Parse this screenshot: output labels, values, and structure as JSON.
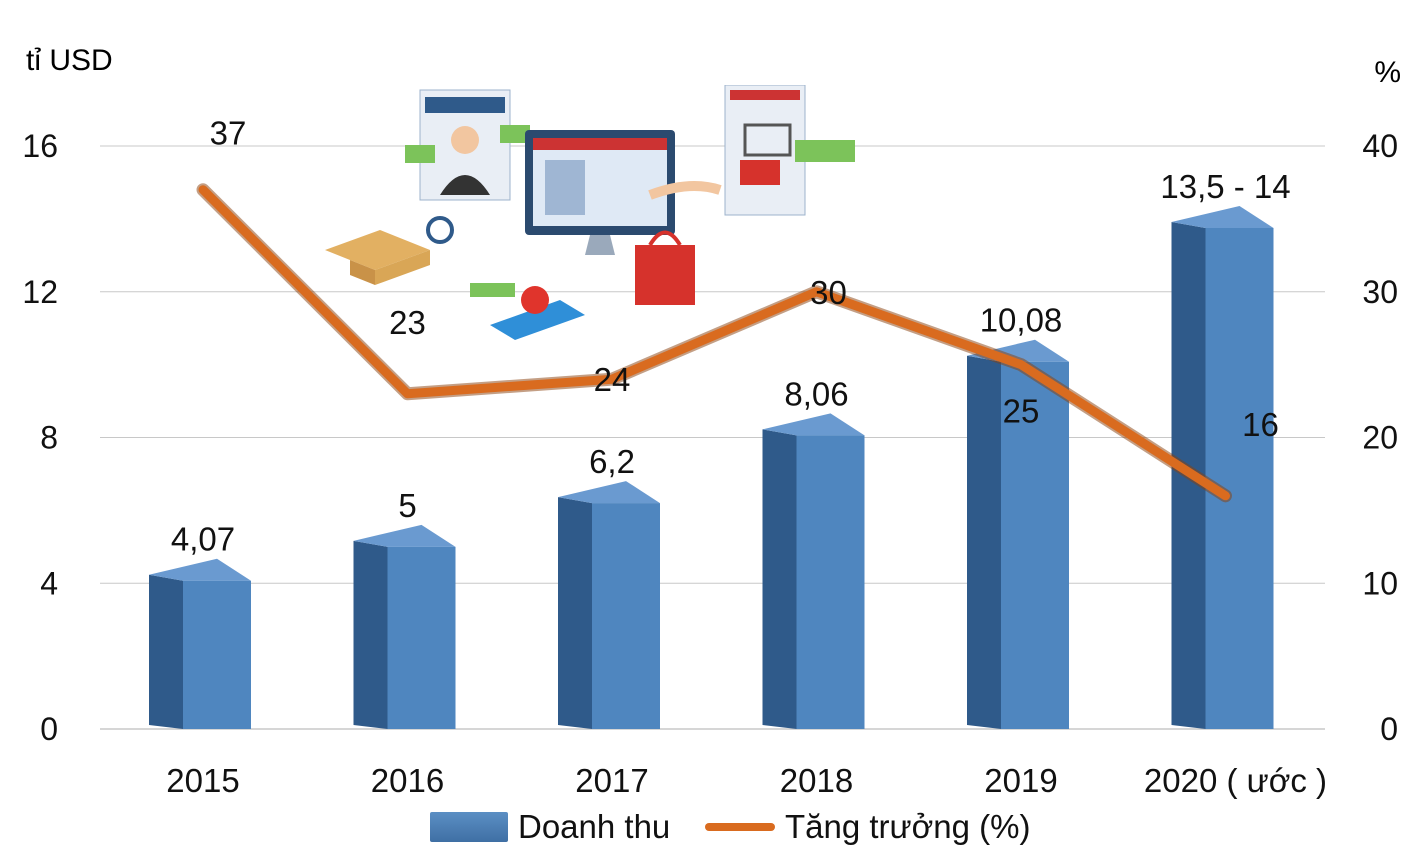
{
  "axis_labels": {
    "left_unit": "tỉ USD",
    "right_unit": "%"
  },
  "legend": {
    "bar_label": "Doanh thu",
    "line_label": "Tăng trưởng (%)"
  },
  "colors": {
    "bar_front": "#4f86bf",
    "bar_side": "#2f5a8a",
    "bar_top": "#6a9ad0",
    "line": "#d96b1f",
    "grid": "#c8c8c8"
  },
  "chart_data": {
    "type": "bar",
    "categories": [
      "2015",
      "2016",
      "2017",
      "2018",
      "2019",
      "2020 ( ước )"
    ],
    "series": [
      {
        "name": "Doanh thu",
        "type": "bar",
        "axis": "left",
        "values": [
          4.07,
          5,
          6.2,
          8.06,
          10.08,
          13.75
        ],
        "labels": [
          "4,07",
          "5",
          "6,2",
          "8,06",
          "10,08",
          "13,5 - 14"
        ]
      },
      {
        "name": "Tăng trưởng (%)",
        "type": "line",
        "axis": "right",
        "values": [
          37,
          23,
          24,
          30,
          25,
          16
        ],
        "labels": [
          "37",
          "23",
          "24",
          "30",
          "25",
          "16"
        ]
      }
    ],
    "ylim_left": [
      0,
      16
    ],
    "yticks_left": [
      "0",
      "4",
      "8",
      "12",
      "16"
    ],
    "ylim_right": [
      0,
      40
    ],
    "yticks_right": [
      "0",
      "10",
      "20",
      "30",
      "40"
    ],
    "grid": true,
    "legend_position": "bottom"
  },
  "decoration_icons": [
    "support-agent-icon",
    "computer-shop-icon",
    "shopping-bag-icon",
    "delivery-box-icon",
    "sale-notification-icon",
    "buy-now-cart-icon"
  ]
}
